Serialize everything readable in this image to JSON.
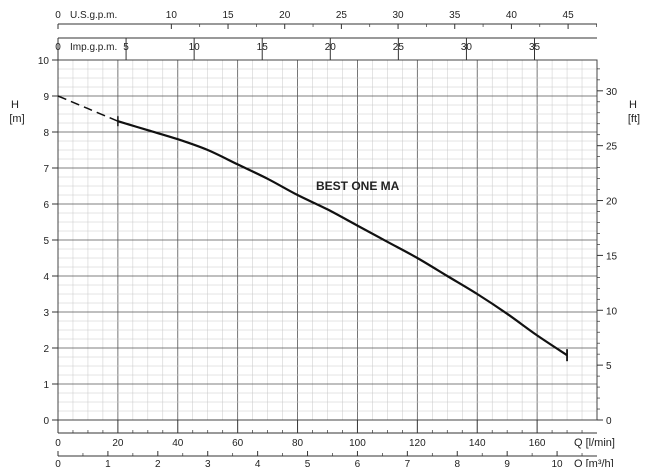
{
  "chart_data": {
    "type": "line",
    "annotation": "BEST ONE MA",
    "y_left": {
      "label_line1": "H",
      "label_line2": "[m]",
      "min": 0,
      "max": 10,
      "ticks": [
        0,
        1,
        2,
        3,
        4,
        5,
        6,
        7,
        8,
        9,
        10
      ]
    },
    "y_right": {
      "label_line1": "H",
      "label_line2": "[ft]",
      "min": 0,
      "max": 32.8084,
      "ticks": [
        0,
        5,
        10,
        15,
        20,
        25,
        30
      ]
    },
    "x_lmin": {
      "label": "Q [l/min]",
      "min": 0,
      "max": 180,
      "ticks": [
        0,
        20,
        40,
        60,
        80,
        100,
        120,
        140,
        160
      ]
    },
    "x_m3h": {
      "label": "Q [m³/h]",
      "min": 0,
      "max": 10.8,
      "ticks": [
        0,
        1,
        2,
        3,
        4,
        5,
        6,
        7,
        8,
        9,
        10
      ]
    },
    "x_usgpm": {
      "label": "U.S.g.p.m.",
      "min": 0,
      "max": 47.55,
      "ticks": [
        0,
        10,
        15,
        20,
        25,
        30,
        35,
        40,
        45
      ]
    },
    "x_impgpm": {
      "label": "Imp.g.p.m.",
      "min": 0,
      "max": 39.59,
      "ticks": [
        0,
        5,
        10,
        15,
        20,
        25,
        30,
        35
      ]
    },
    "grid": true,
    "series": [
      {
        "style": "dashed",
        "x": [
          0,
          10,
          20
        ],
        "y": [
          9.0,
          8.65,
          8.3
        ]
      },
      {
        "style": "solid",
        "x": [
          20,
          30,
          40,
          50,
          60,
          70,
          80,
          90,
          100,
          110,
          120,
          130,
          140,
          150,
          160,
          170
        ],
        "y": [
          8.3,
          8.05,
          7.8,
          7.5,
          7.1,
          6.7,
          6.25,
          5.85,
          5.4,
          4.95,
          4.5,
          4.0,
          3.5,
          2.95,
          2.35,
          1.8
        ]
      }
    ]
  }
}
